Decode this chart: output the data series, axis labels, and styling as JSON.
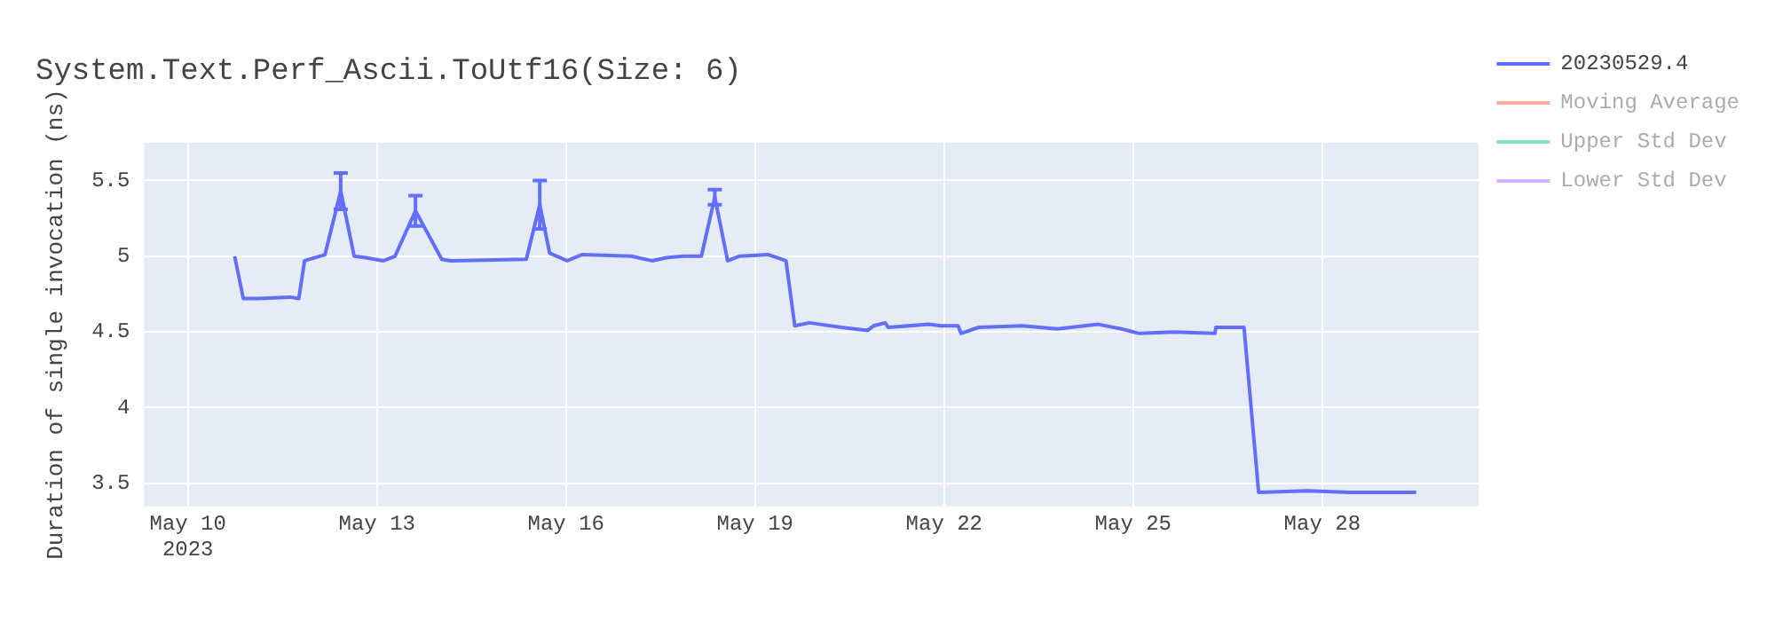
{
  "chart_data": {
    "type": "line",
    "title": "System.Text.Perf_Ascii.ToUtf16(Size: 6)",
    "ylabel": "Duration of single invocation (ns)",
    "x": [
      "2023-05-10T17:48",
      "2023-05-10T21:07",
      "2023-05-11T02:40",
      "2023-05-11T14:53",
      "2023-05-11T18:13",
      "2023-05-11T20:27",
      "2023-05-12T04:12",
      "2023-05-12T10:12",
      "2023-05-12T15:20",
      "2023-05-12T19:48",
      "2023-05-13T02:28",
      "2023-05-13T06:53",
      "2023-05-13T14:40",
      "2023-05-14T00:40",
      "2023-05-14T04:00",
      "2023-05-15T08:53",
      "2023-05-15T14:00",
      "2023-05-15T17:47",
      "2023-05-16T00:27",
      "2023-05-16T06:00",
      "2023-05-17T00:53",
      "2023-05-17T08:40",
      "2023-05-17T14:13",
      "2023-05-17T20:53",
      "2023-05-18T03:33",
      "2023-05-18T08:40",
      "2023-05-18T13:33",
      "2023-05-18T18:00",
      "2023-05-19T05:07",
      "2023-05-19T11:47",
      "2023-05-19T15:07",
      "2023-05-19T20:40",
      "2023-05-20T08:53",
      "2023-05-20T18:53",
      "2023-05-20T21:07",
      "2023-05-21T01:33",
      "2023-05-21T02:40",
      "2023-05-21T18:13",
      "2023-05-21T22:40",
      "2023-05-22T05:20",
      "2023-05-22T06:27",
      "2023-05-22T13:07",
      "2023-05-23T05:47",
      "2023-05-23T19:07",
      "2023-05-24T10:40",
      "2023-05-24T19:33",
      "2023-05-25T02:13",
      "2023-05-25T15:33",
      "2023-05-26T07:07",
      "2023-05-26T07:30",
      "2023-05-26T18:13",
      "2023-05-26T23:47",
      "2023-05-27T18:40",
      "2023-05-28T10:13",
      "2023-05-29T11:47"
    ],
    "series": [
      {
        "name": "20230529.4",
        "color": "#636efa",
        "values": [
          5.0,
          4.72,
          4.72,
          4.73,
          4.72,
          4.97,
          5.01,
          5.43,
          5.0,
          4.99,
          4.97,
          5.0,
          5.3,
          4.98,
          4.97,
          4.98,
          5.34,
          5.02,
          4.97,
          5.01,
          5.0,
          4.97,
          4.99,
          5.0,
          5.0,
          5.39,
          4.97,
          5.0,
          5.01,
          4.97,
          4.54,
          4.56,
          4.53,
          4.51,
          4.54,
          4.56,
          4.53,
          4.55,
          4.54,
          4.54,
          4.49,
          4.53,
          4.54,
          4.52,
          4.55,
          4.52,
          4.49,
          4.5,
          4.49,
          4.53,
          4.53,
          3.44,
          3.45,
          3.44,
          3.44
        ],
        "errors": [
          null,
          null,
          null,
          null,
          null,
          null,
          null,
          0.12,
          null,
          null,
          null,
          null,
          0.1,
          null,
          null,
          null,
          0.16,
          null,
          null,
          null,
          null,
          null,
          null,
          null,
          null,
          0.05,
          null,
          null,
          null,
          null,
          null,
          null,
          null,
          null,
          null,
          null,
          null,
          null,
          null,
          null,
          null,
          null,
          null,
          null,
          null,
          null,
          null,
          null,
          null,
          null,
          null,
          null,
          null,
          null,
          null
        ]
      },
      {
        "name": "Moving Average",
        "color": "#ef553b",
        "values": [
          null,
          null,
          null,
          null,
          null,
          null,
          null,
          null,
          null,
          null,
          null,
          null,
          null,
          null,
          null,
          null,
          null,
          null,
          null,
          null,
          null,
          null,
          null,
          null,
          null,
          null,
          null,
          null,
          null,
          null,
          null,
          null,
          null,
          null,
          null,
          null,
          null,
          null,
          null,
          null,
          null,
          null,
          null,
          null,
          null,
          null,
          null,
          null,
          null,
          null,
          null,
          null,
          null,
          null,
          null
        ]
      },
      {
        "name": "Upper Std Dev",
        "color": "#00cc96",
        "values": [
          null,
          null,
          null,
          null,
          null,
          null,
          null,
          null,
          null,
          null,
          null,
          null,
          null,
          null,
          null,
          null,
          null,
          null,
          null,
          null,
          null,
          null,
          null,
          null,
          null,
          null,
          null,
          null,
          null,
          null,
          null,
          null,
          null,
          null,
          null,
          null,
          null,
          null,
          null,
          null,
          null,
          null,
          null,
          null,
          null,
          null,
          null,
          null,
          null,
          null,
          null,
          null,
          null,
          null,
          null
        ]
      },
      {
        "name": "Lower Std Dev",
        "color": "#ab63fa",
        "values": [
          null,
          null,
          null,
          null,
          null,
          null,
          null,
          null,
          null,
          null,
          null,
          null,
          null,
          null,
          null,
          null,
          null,
          null,
          null,
          null,
          null,
          null,
          null,
          null,
          null,
          null,
          null,
          null,
          null,
          null,
          null,
          null,
          null,
          null,
          null,
          null,
          null,
          null,
          null,
          null,
          null,
          null,
          null,
          null,
          null,
          null,
          null,
          null,
          null,
          null,
          null,
          null,
          null,
          null,
          null
        ]
      }
    ],
    "xlim": [
      "2023-05-09T07:20",
      "2023-05-30T11:40"
    ],
    "xticks": [
      {
        "value": "2023-05-10",
        "label": "May 10\n2023"
      },
      {
        "value": "2023-05-13",
        "label": "May 13"
      },
      {
        "value": "2023-05-16",
        "label": "May 16"
      },
      {
        "value": "2023-05-19",
        "label": "May 19"
      },
      {
        "value": "2023-05-22",
        "label": "May 22"
      },
      {
        "value": "2023-05-25",
        "label": "May 25"
      },
      {
        "value": "2023-05-28",
        "label": "May 28"
      }
    ],
    "ylim": [
      3.35,
      5.75
    ],
    "yticks": [
      3.5,
      4,
      4.5,
      5,
      5.5
    ],
    "grid": true,
    "legend": "top right",
    "marker": "none",
    "line_style": "solid"
  }
}
